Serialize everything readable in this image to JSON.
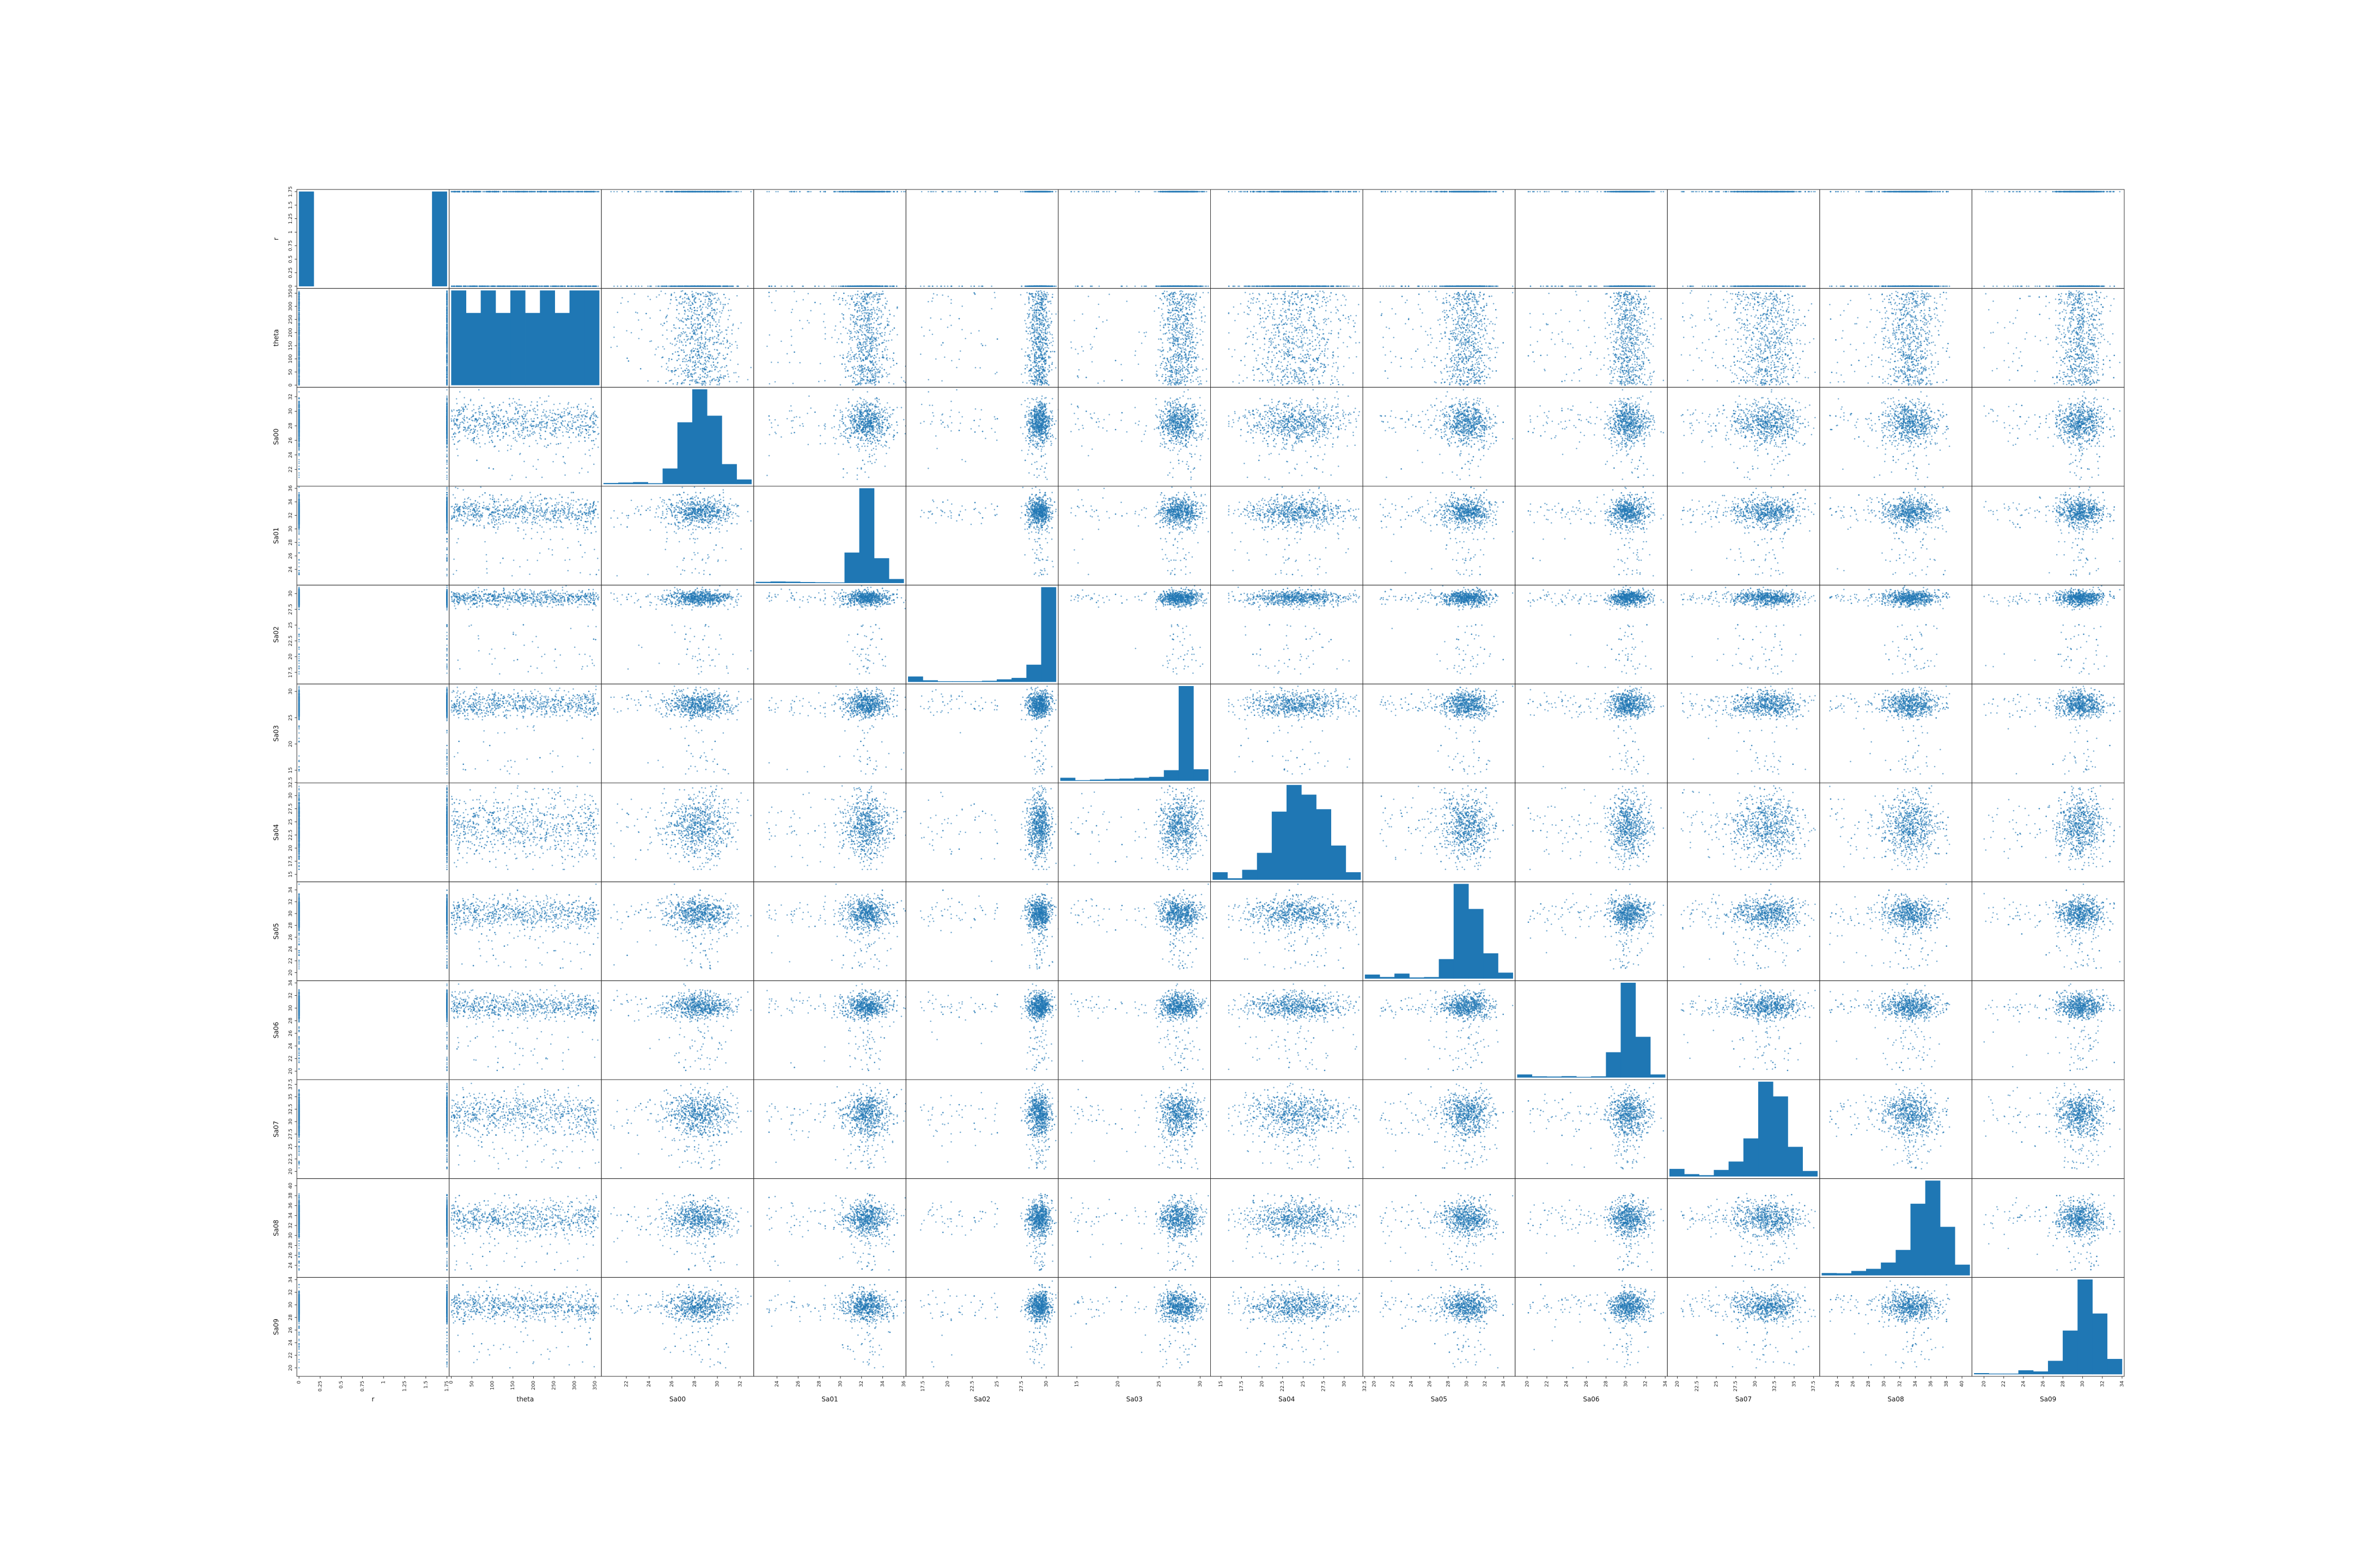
{
  "chart_data": {
    "type": "scatter-matrix",
    "variables": [
      "r",
      "theta",
      "Sa00",
      "Sa01",
      "Sa02",
      "Sa03",
      "Sa04",
      "Sa05",
      "Sa06",
      "Sa07",
      "Sa08",
      "Sa09"
    ],
    "color": "#1f77b4",
    "marker_alpha": 0.6,
    "diagonal": "hist",
    "n_rows": 12,
    "n_cols": 12,
    "axes": [
      {
        "name": "r",
        "range": [
          0.0,
          1.75
        ],
        "ticks": [
          0.0,
          0.25,
          0.5,
          0.75,
          1.0,
          1.25,
          1.5,
          1.75
        ]
      },
      {
        "name": "theta",
        "range": [
          0,
          360
        ],
        "ticks": [
          0,
          50,
          100,
          150,
          200,
          250,
          300,
          350
        ]
      },
      {
        "name": "Sa00",
        "range": [
          20,
          33
        ],
        "ticks": [
          22,
          24,
          26,
          28,
          30,
          32
        ]
      },
      {
        "name": "Sa01",
        "range": [
          22,
          36
        ],
        "ticks": [
          24,
          26,
          28,
          30,
          32,
          34,
          36
        ]
      },
      {
        "name": "Sa02",
        "range": [
          16,
          31
        ],
        "ticks": [
          17.5,
          20.0,
          22.5,
          25.0,
          27.5,
          30.0
        ]
      },
      {
        "name": "Sa03",
        "range": [
          13,
          31
        ],
        "ticks": [
          15,
          20,
          25,
          30
        ]
      },
      {
        "name": "Sa04",
        "range": [
          14,
          32
        ],
        "ticks": [
          15.0,
          17.5,
          20.0,
          22.5,
          25.0,
          27.5,
          30.0,
          32.5
        ]
      },
      {
        "name": "Sa05",
        "range": [
          19,
          35
        ],
        "ticks": [
          20,
          22,
          24,
          26,
          28,
          30,
          32,
          34
        ]
      },
      {
        "name": "Sa06",
        "range": [
          19,
          34
        ],
        "ticks": [
          20,
          22,
          24,
          26,
          28,
          30,
          32,
          34
        ]
      },
      {
        "name": "Sa07",
        "range": [
          19,
          38
        ],
        "ticks": [
          20.0,
          22.5,
          25.0,
          27.5,
          30.0,
          32.5,
          35.0,
          37.5
        ]
      },
      {
        "name": "Sa08",
        "range": [
          22,
          41
        ],
        "ticks": [
          24,
          26,
          28,
          30,
          32,
          34,
          36,
          38,
          40
        ]
      },
      {
        "name": "Sa09",
        "range": [
          19,
          34
        ],
        "ticks": [
          20,
          22,
          24,
          26,
          28,
          30,
          32,
          34
        ]
      }
    ],
    "distributions": [
      {
        "name": "r",
        "kind": "bimodal",
        "low": 0.0,
        "high": 1.75
      },
      {
        "name": "theta",
        "kind": "uniform",
        "low": 0,
        "high": 360
      },
      {
        "name": "Sa00",
        "kind": "normal",
        "mean": 28.5,
        "sd": 1.4,
        "tail_low": 20.5,
        "tail_frac": 0.05
      },
      {
        "name": "Sa01",
        "kind": "normal",
        "mean": 32.5,
        "sd": 1.1,
        "tail_low": 23.0,
        "tail_frac": 0.05
      },
      {
        "name": "Sa02",
        "kind": "normal",
        "mean": 29.3,
        "sd": 0.6,
        "tail_low": 17.0,
        "tail_frac": 0.05
      },
      {
        "name": "Sa03",
        "kind": "normal",
        "mean": 27.5,
        "sd": 1.2,
        "tail_low": 14.0,
        "tail_frac": 0.05
      },
      {
        "name": "Sa04",
        "kind": "normal",
        "mean": 24.5,
        "sd": 2.8,
        "tail_low": 15.5,
        "tail_frac": 0.05
      },
      {
        "name": "Sa05",
        "kind": "normal",
        "mean": 30.0,
        "sd": 1.3,
        "tail_low": 20.5,
        "tail_frac": 0.05
      },
      {
        "name": "Sa06",
        "kind": "normal",
        "mean": 30.3,
        "sd": 1.0,
        "tail_low": 20.0,
        "tail_frac": 0.05
      },
      {
        "name": "Sa07",
        "kind": "normal",
        "mean": 31.5,
        "sd": 2.2,
        "tail_low": 20.5,
        "tail_frac": 0.05
      },
      {
        "name": "Sa08",
        "kind": "normal",
        "mean": 33.5,
        "sd": 1.8,
        "tail_low": 23.0,
        "tail_frac": 0.05
      },
      {
        "name": "Sa09",
        "kind": "normal",
        "mean": 29.8,
        "sd": 1.2,
        "tail_low": 20.0,
        "tail_frac": 0.05
      }
    ],
    "points_per_panel": 900,
    "hist_bins": 10,
    "hist_values": [
      [
        1800,
        0,
        0,
        0,
        0,
        0,
        0,
        0,
        0,
        1800
      ],
      [
        420,
        320,
        420,
        320,
        420,
        320,
        420,
        320,
        420,
        420
      ],
      [
        8,
        12,
        16,
        6,
        140,
        560,
        860,
        620,
        180,
        40
      ],
      [
        10,
        14,
        12,
        8,
        6,
        4,
        320,
        1000,
        260,
        40
      ],
      [
        55,
        15,
        5,
        5,
        5,
        10,
        25,
        40,
        180,
        1000
      ],
      [
        30,
        5,
        10,
        18,
        22,
        30,
        40,
        110,
        1000,
        120
      ],
      [
        60,
        10,
        80,
        220,
        560,
        780,
        700,
        580,
        280,
        60
      ],
      [
        40,
        15,
        50,
        10,
        14,
        200,
        980,
        720,
        260,
        60
      ],
      [
        30,
        10,
        8,
        12,
        5,
        10,
        260,
        980,
        420,
        30
      ],
      [
        70,
        20,
        10,
        60,
        140,
        360,
        900,
        760,
        280,
        50
      ],
      [
        20,
        18,
        40,
        60,
        120,
        240,
        680,
        900,
        460,
        100
      ],
      [
        10,
        5,
        5,
        40,
        28,
        140,
        460,
        1000,
        640,
        160
      ]
    ]
  }
}
